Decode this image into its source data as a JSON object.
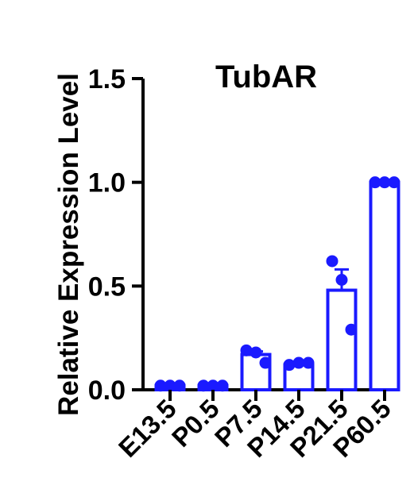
{
  "chart_data": {
    "type": "bar",
    "title": "TubAR",
    "xlabel": "",
    "ylabel": "Relative Expression Level",
    "categories": [
      "E13.5",
      "P0.5",
      "P7.5",
      "P14.5",
      "P21.5",
      "P60.5"
    ],
    "values": [
      0.02,
      0.02,
      0.17,
      0.12,
      0.48,
      1.0
    ],
    "error_bars": [
      0.003,
      0.002,
      0.015,
      0.01,
      0.1,
      0.002
    ],
    "points": [
      [
        0.02,
        0.02,
        0.02
      ],
      [
        0.02,
        0.02,
        0.02
      ],
      [
        0.19,
        0.18,
        0.13
      ],
      [
        0.12,
        0.13,
        0.13
      ],
      [
        0.62,
        0.53,
        0.29
      ],
      [
        1.0,
        1.0,
        1.0
      ]
    ],
    "ylim": [
      0,
      1.5
    ],
    "yticks": [
      "0.0",
      "0.5",
      "1.0",
      "1.5"
    ],
    "grid": false,
    "colors": {
      "bar": "#1a1aff",
      "point": "#1a1aff",
      "axis": "#000000"
    }
  }
}
